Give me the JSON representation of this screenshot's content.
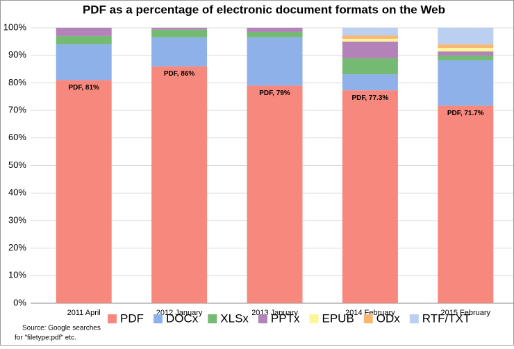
{
  "chart_data": {
    "type": "stacked_bar",
    "title": "PDF as a percentage of electronic document formats on the Web",
    "categories": [
      "2011 April",
      "2012 January",
      "2013 January",
      "2014 February",
      "2015 February"
    ],
    "series": [
      {
        "name": "PDF",
        "color": "#f7887d",
        "values": [
          81,
          86,
          79,
          77.3,
          71.7
        ],
        "value_labels": [
          "PDF, 81%",
          "PDF, 86%",
          "PDF, 79%",
          "PDF, 77.3%",
          "PDF, 71.7%"
        ]
      },
      {
        "name": "DOCx",
        "color": "#8fb1ea",
        "values": [
          13,
          10.5,
          17.5,
          5.8,
          16.5
        ]
      },
      {
        "name": "XLSx",
        "color": "#74ba72",
        "values": [
          3,
          2.8,
          2,
          5.8,
          1.7
        ]
      },
      {
        "name": "PPTx",
        "color": "#b282b8",
        "values": [
          3,
          0.7,
          1.5,
          6.1,
          1.5
        ]
      },
      {
        "name": "EPUB",
        "color": "#fbf69c",
        "values": [
          0,
          0,
          0,
          1,
          1.3
        ]
      },
      {
        "name": "ODx",
        "color": "#f8b872",
        "values": [
          0,
          0,
          0,
          1.2,
          1.3
        ]
      },
      {
        "name": "RTF/TXT",
        "color": "#bbd0f0",
        "values": [
          0,
          0,
          0,
          2.8,
          6
        ]
      }
    ],
    "ylim": [
      0,
      100
    ],
    "yticks": [
      {
        "value": 0,
        "label": "0%"
      },
      {
        "value": 10,
        "label": "10%"
      },
      {
        "value": 20,
        "label": "20%"
      },
      {
        "value": 30,
        "label": "30%"
      },
      {
        "value": 40,
        "label": "40%"
      },
      {
        "value": 50,
        "label": "50%"
      },
      {
        "value": 60,
        "label": "60%"
      },
      {
        "value": 70,
        "label": "70%"
      },
      {
        "value": 80,
        "label": "80%"
      },
      {
        "value": 90,
        "label": "90%"
      },
      {
        "value": 100,
        "label": "100%"
      }
    ],
    "grid": true,
    "source_note": [
      "Source: Google searches",
      "for \"filetype:pdf\" etc."
    ]
  }
}
